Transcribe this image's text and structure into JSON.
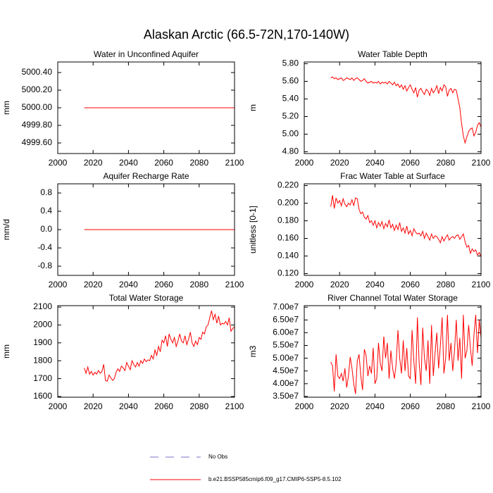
{
  "title": "Alaskan Arctic (66.5-72N,170-140W)",
  "legend": [
    {
      "name": "No Obs",
      "color": "#7d6fc9",
      "dashed": true
    },
    {
      "name": "b.e21.BSSP585cmip6.f09_g17.CMIP6-SSP5-8.5.102",
      "color": "#ff0000",
      "dashed": false
    }
  ],
  "chart_data": [
    {
      "type": "line",
      "title": "Water in Unconfined Aquifer",
      "ylabel": "mm",
      "color": "#ff0000",
      "xlim": [
        2000,
        2100
      ],
      "xticks": [
        2000,
        2020,
        2040,
        2060,
        2080,
        2100
      ],
      "ylim": [
        4999.48,
        5000.52
      ],
      "yticks": [
        {
          "value": 4999.6,
          "label": "4999.60"
        },
        {
          "value": 4999.8,
          "label": "4999.80"
        },
        {
          "value": 5000,
          "label": "5000.00"
        },
        {
          "value": 5000.2,
          "label": "5000.20"
        },
        {
          "value": 5000.4,
          "label": "5000.40"
        }
      ],
      "x": [
        2015,
        2016,
        2017,
        2018,
        2019,
        2020,
        2021,
        2022,
        2023,
        2024,
        2025,
        2026,
        2027,
        2028,
        2029,
        2030,
        2031,
        2032,
        2033,
        2034,
        2035,
        2036,
        2037,
        2038,
        2039,
        2040,
        2041,
        2042,
        2043,
        2044,
        2045,
        2046,
        2047,
        2048,
        2049,
        2050,
        2051,
        2052,
        2053,
        2054,
        2055,
        2056,
        2057,
        2058,
        2059,
        2060,
        2061,
        2062,
        2063,
        2064,
        2065,
        2066,
        2067,
        2068,
        2069,
        2070,
        2071,
        2072,
        2073,
        2074,
        2075,
        2076,
        2077,
        2078,
        2079,
        2080,
        2081,
        2082,
        2083,
        2084,
        2085,
        2086,
        2087,
        2088,
        2089,
        2090,
        2091,
        2092,
        2093,
        2094,
        2095,
        2096,
        2097,
        2098,
        2099,
        2100
      ],
      "values": [
        5000,
        5000,
        5000,
        5000,
        5000,
        5000,
        5000,
        5000,
        5000,
        5000,
        5000,
        5000,
        5000,
        5000,
        5000,
        5000,
        5000,
        5000,
        5000,
        5000,
        5000,
        5000,
        5000,
        5000,
        5000,
        5000,
        5000,
        5000,
        5000,
        5000,
        5000,
        5000,
        5000,
        5000,
        5000,
        5000,
        5000,
        5000,
        5000,
        5000,
        5000,
        5000,
        5000,
        5000,
        5000,
        5000,
        5000,
        5000,
        5000,
        5000,
        5000,
        5000,
        5000,
        5000,
        5000,
        5000,
        5000,
        5000,
        5000,
        5000,
        5000,
        5000,
        5000,
        5000,
        5000,
        5000,
        5000,
        5000,
        5000,
        5000,
        5000,
        5000,
        5000,
        5000,
        5000,
        5000,
        5000,
        5000,
        5000,
        5000,
        5000,
        5000,
        5000,
        5000,
        5000,
        5000
      ]
    },
    {
      "type": "line",
      "title": "Water Table Depth",
      "ylabel": "m",
      "color": "#ff0000",
      "xlim": [
        2000,
        2100
      ],
      "xticks": [
        2000,
        2020,
        2040,
        2060,
        2080,
        2100
      ],
      "ylim": [
        4.78,
        5.82
      ],
      "yticks": [
        {
          "value": 4.8,
          "label": "4.80"
        },
        {
          "value": 5,
          "label": "5.00"
        },
        {
          "value": 5.2,
          "label": "5.20"
        },
        {
          "value": 5.4,
          "label": "5.40"
        },
        {
          "value": 5.6,
          "label": "5.60"
        },
        {
          "value": 5.8,
          "label": "5.80"
        }
      ],
      "x": [
        2015,
        2016,
        2017,
        2018,
        2019,
        2020,
        2021,
        2022,
        2023,
        2024,
        2025,
        2026,
        2027,
        2028,
        2029,
        2030,
        2031,
        2032,
        2033,
        2034,
        2035,
        2036,
        2037,
        2038,
        2039,
        2040,
        2041,
        2042,
        2043,
        2044,
        2045,
        2046,
        2047,
        2048,
        2049,
        2050,
        2051,
        2052,
        2053,
        2054,
        2055,
        2056,
        2057,
        2058,
        2059,
        2060,
        2061,
        2062,
        2063,
        2064,
        2065,
        2066,
        2067,
        2068,
        2069,
        2070,
        2071,
        2072,
        2073,
        2074,
        2075,
        2076,
        2077,
        2078,
        2079,
        2080,
        2081,
        2082,
        2083,
        2084,
        2085,
        2086,
        2087,
        2088,
        2089,
        2090,
        2091,
        2092,
        2093,
        2094,
        2095,
        2096,
        2097,
        2098,
        2099,
        2100
      ],
      "values": [
        5.64,
        5.65,
        5.63,
        5.64,
        5.62,
        5.63,
        5.64,
        5.61,
        5.62,
        5.64,
        5.63,
        5.62,
        5.64,
        5.61,
        5.63,
        5.64,
        5.62,
        5.6,
        5.61,
        5.63,
        5.6,
        5.58,
        5.59,
        5.6,
        5.58,
        5.59,
        5.58,
        5.6,
        5.57,
        5.59,
        5.58,
        5.59,
        5.57,
        5.6,
        5.58,
        5.56,
        5.59,
        5.55,
        5.57,
        5.53,
        5.56,
        5.51,
        5.55,
        5.49,
        5.53,
        5.56,
        5.51,
        5.47,
        5.53,
        5.42,
        5.5,
        5.52,
        5.48,
        5.45,
        5.51,
        5.49,
        5.44,
        5.52,
        5.47,
        5.5,
        5.55,
        5.46,
        5.53,
        5.49,
        5.56,
        5.54,
        5.43,
        5.5,
        5.52,
        5.47,
        5.51,
        5.5,
        5.4,
        5.3,
        5.12,
        4.98,
        4.9,
        4.97,
        5.03,
        5.06,
        5.07,
        4.98,
        5.02,
        5.1,
        5.13,
        5.08
      ]
    },
    {
      "type": "line",
      "title": "Aquifer Recharge Rate",
      "ylabel": "mm/d",
      "color": "#ff0000",
      "xlim": [
        2000,
        2100
      ],
      "xticks": [
        2000,
        2020,
        2040,
        2060,
        2080,
        2100
      ],
      "ylim": [
        -1,
        1
      ],
      "yticks": [
        -0.8,
        -0.4,
        {
          "value": 0,
          "label": "0.0"
        },
        0.4,
        0.8
      ],
      "x": [
        2015,
        2016,
        2017,
        2018,
        2019,
        2020,
        2021,
        2022,
        2023,
        2024,
        2025,
        2026,
        2027,
        2028,
        2029,
        2030,
        2031,
        2032,
        2033,
        2034,
        2035,
        2036,
        2037,
        2038,
        2039,
        2040,
        2041,
        2042,
        2043,
        2044,
        2045,
        2046,
        2047,
        2048,
        2049,
        2050,
        2051,
        2052,
        2053,
        2054,
        2055,
        2056,
        2057,
        2058,
        2059,
        2060,
        2061,
        2062,
        2063,
        2064,
        2065,
        2066,
        2067,
        2068,
        2069,
        2070,
        2071,
        2072,
        2073,
        2074,
        2075,
        2076,
        2077,
        2078,
        2079,
        2080,
        2081,
        2082,
        2083,
        2084,
        2085,
        2086,
        2087,
        2088,
        2089,
        2090,
        2091,
        2092,
        2093,
        2094,
        2095,
        2096,
        2097,
        2098,
        2099,
        2100
      ],
      "values": [
        0,
        0,
        0,
        0,
        0,
        0,
        0,
        0,
        0,
        0,
        0,
        0,
        0,
        0,
        0,
        0,
        0,
        0,
        0,
        0,
        0,
        0,
        0,
        0,
        0,
        0,
        0,
        0,
        0,
        0,
        0,
        0,
        0,
        0,
        0,
        0,
        0,
        0,
        0,
        0,
        0,
        0,
        0,
        0,
        0,
        0,
        0,
        0,
        0,
        0,
        0,
        0,
        0,
        0,
        0,
        0,
        0,
        0,
        0,
        0,
        0,
        0,
        0,
        0,
        0,
        0,
        0,
        0,
        0,
        0,
        0,
        0,
        0,
        0,
        0,
        0,
        0,
        0,
        0,
        0,
        0,
        0,
        0,
        0,
        0,
        0
      ]
    },
    {
      "type": "line",
      "title": "Frac Water Table at Surface",
      "ylabel": "unitless [0-1]",
      "color": "#ff0000",
      "xlim": [
        2000,
        2100
      ],
      "xticks": [
        2000,
        2020,
        2040,
        2060,
        2080,
        2100
      ],
      "ylim": [
        0.118,
        0.222
      ],
      "yticks": [
        {
          "value": 0.12,
          "label": "0.120"
        },
        {
          "value": 0.14,
          "label": "0.140"
        },
        {
          "value": 0.16,
          "label": "0.160"
        },
        {
          "value": 0.18,
          "label": "0.180"
        },
        {
          "value": 0.2,
          "label": "0.200"
        },
        {
          "value": 0.22,
          "label": "0.220"
        }
      ],
      "x": [
        2015,
        2016,
        2017,
        2018,
        2019,
        2020,
        2021,
        2022,
        2023,
        2024,
        2025,
        2026,
        2027,
        2028,
        2029,
        2030,
        2031,
        2032,
        2033,
        2034,
        2035,
        2036,
        2037,
        2038,
        2039,
        2040,
        2041,
        2042,
        2043,
        2044,
        2045,
        2046,
        2047,
        2048,
        2049,
        2050,
        2051,
        2052,
        2053,
        2054,
        2055,
        2056,
        2057,
        2058,
        2059,
        2060,
        2061,
        2062,
        2063,
        2064,
        2065,
        2066,
        2067,
        2068,
        2069,
        2070,
        2071,
        2072,
        2073,
        2074,
        2075,
        2076,
        2077,
        2078,
        2079,
        2080,
        2081,
        2082,
        2083,
        2084,
        2085,
        2086,
        2087,
        2088,
        2089,
        2090,
        2091,
        2092,
        2093,
        2094,
        2095,
        2096,
        2097,
        2098,
        2099,
        2100
      ],
      "values": [
        0.196,
        0.209,
        0.194,
        0.206,
        0.2,
        0.203,
        0.197,
        0.205,
        0.199,
        0.196,
        0.2,
        0.198,
        0.204,
        0.197,
        0.206,
        0.205,
        0.193,
        0.188,
        0.19,
        0.184,
        0.182,
        0.186,
        0.178,
        0.18,
        0.175,
        0.18,
        0.172,
        0.178,
        0.174,
        0.179,
        0.171,
        0.177,
        0.173,
        0.181,
        0.172,
        0.176,
        0.169,
        0.175,
        0.17,
        0.178,
        0.168,
        0.172,
        0.166,
        0.174,
        0.165,
        0.169,
        0.163,
        0.171,
        0.167,
        0.165,
        0.166,
        0.163,
        0.168,
        0.16,
        0.166,
        0.162,
        0.158,
        0.165,
        0.16,
        0.163,
        0.162,
        0.159,
        0.155,
        0.162,
        0.157,
        0.161,
        0.164,
        0.158,
        0.161,
        0.162,
        0.16,
        0.163,
        0.164,
        0.159,
        0.162,
        0.165,
        0.156,
        0.15,
        0.152,
        0.143,
        0.148,
        0.145,
        0.147,
        0.141,
        0.144,
        0.139
      ]
    },
    {
      "type": "line",
      "title": "Total Water Storage",
      "ylabel": "mm",
      "color": "#ff0000",
      "xlim": [
        2000,
        2100
      ],
      "xticks": [
        2000,
        2020,
        2040,
        2060,
        2080,
        2100
      ],
      "ylim": [
        1596,
        2108
      ],
      "yticks": [
        1600,
        1700,
        1800,
        1900,
        2000,
        2100
      ],
      "x": [
        2015,
        2016,
        2017,
        2018,
        2019,
        2020,
        2021,
        2022,
        2023,
        2024,
        2025,
        2026,
        2027,
        2028,
        2029,
        2030,
        2031,
        2032,
        2033,
        2034,
        2035,
        2036,
        2037,
        2038,
        2039,
        2040,
        2041,
        2042,
        2043,
        2044,
        2045,
        2046,
        2047,
        2048,
        2049,
        2050,
        2051,
        2052,
        2053,
        2054,
        2055,
        2056,
        2057,
        2058,
        2059,
        2060,
        2061,
        2062,
        2063,
        2064,
        2065,
        2066,
        2067,
        2068,
        2069,
        2070,
        2071,
        2072,
        2073,
        2074,
        2075,
        2076,
        2077,
        2078,
        2079,
        2080,
        2081,
        2082,
        2083,
        2084,
        2085,
        2086,
        2087,
        2088,
        2089,
        2090,
        2091,
        2092,
        2093,
        2094,
        2095,
        2096,
        2097,
        2098,
        2099,
        2100
      ],
      "values": [
        1760,
        1730,
        1765,
        1725,
        1740,
        1720,
        1735,
        1725,
        1745,
        1730,
        1740,
        1780,
        1690,
        1685,
        1720,
        1705,
        1690,
        1700,
        1735,
        1755,
        1740,
        1770,
        1760,
        1745,
        1790,
        1770,
        1750,
        1800,
        1780,
        1765,
        1790,
        1770,
        1800,
        1785,
        1810,
        1795,
        1805,
        1800,
        1830,
        1810,
        1860,
        1830,
        1880,
        1850,
        1915,
        1900,
        1940,
        1880,
        1950,
        1920,
        1900,
        1930,
        1880,
        1910,
        1950,
        1910,
        1900,
        1940,
        1890,
        1920,
        1960,
        1900,
        1880,
        1910,
        1890,
        1930,
        1920,
        1960,
        1950,
        1990,
        2000,
        2040,
        2080,
        2030,
        2060,
        2010,
        2050,
        2000,
        2010,
        2005,
        2020,
        2000,
        2040,
        1965,
        1980,
        1990
      ]
    },
    {
      "type": "line",
      "title": "River Channel Total Water Storage",
      "ylabel": "m3",
      "color": "#ff0000",
      "xlim": [
        2000,
        2100
      ],
      "xticks": [
        2000,
        2020,
        2040,
        2060,
        2080,
        2100
      ],
      "ylim": [
        34700000.0,
        70600000.0
      ],
      "yticks": [
        {
          "value": 35000000.0,
          "label": "3.50e7"
        },
        {
          "value": 40000000.0,
          "label": "4.00e7"
        },
        {
          "value": 45000000.0,
          "label": "4.50e7"
        },
        {
          "value": 50000000.0,
          "label": "5.00e7"
        },
        {
          "value": 55000000.0,
          "label": "5.50e7"
        },
        {
          "value": 60000000.0,
          "label": "6.00e7"
        },
        {
          "value": 65000000.0,
          "label": "6.50e7"
        },
        {
          "value": 70000000.0,
          "label": "7.00e7"
        }
      ],
      "x": [
        2015,
        2016,
        2017,
        2018,
        2019,
        2020,
        2021,
        2022,
        2023,
        2024,
        2025,
        2026,
        2027,
        2028,
        2029,
        2030,
        2031,
        2032,
        2033,
        2034,
        2035,
        2036,
        2037,
        2038,
        2039,
        2040,
        2041,
        2042,
        2043,
        2044,
        2045,
        2046,
        2047,
        2048,
        2049,
        2050,
        2051,
        2052,
        2053,
        2054,
        2055,
        2056,
        2057,
        2058,
        2059,
        2060,
        2061,
        2062,
        2063,
        2064,
        2065,
        2066,
        2067,
        2068,
        2069,
        2070,
        2071,
        2072,
        2073,
        2074,
        2075,
        2076,
        2077,
        2078,
        2079,
        2080,
        2081,
        2082,
        2083,
        2084,
        2085,
        2086,
        2087,
        2088,
        2089,
        2090,
        2091,
        2092,
        2093,
        2094,
        2095,
        2096,
        2097,
        2098,
        2099,
        2100
      ],
      "values": [
        48500000.0,
        47000000.0,
        37000000.0,
        51500000.0,
        43000000.0,
        42000000.0,
        44000000.0,
        41000000.0,
        46000000.0,
        38500000.0,
        43000000.0,
        50500000.0,
        46000000.0,
        40000000.0,
        36000000.0,
        49000000.0,
        51500000.0,
        43000000.0,
        37500000.0,
        53500000.0,
        51000000.0,
        43000000.0,
        47000000.0,
        44000000.0,
        54000000.0,
        40000000.0,
        42000000.0,
        56000000.0,
        48000000.0,
        45000000.0,
        58500000.0,
        50000000.0,
        56000000.0,
        42000000.0,
        53000000.0,
        46000000.0,
        42000000.0,
        48000000.0,
        61000000.0,
        50000000.0,
        44000000.0,
        57000000.0,
        45000000.0,
        54000000.0,
        43000000.0,
        42000000.0,
        61000000.0,
        49000000.0,
        40000000.0,
        66000000.0,
        48000000.0,
        39500000.0,
        62000000.0,
        50000000.0,
        45000000.0,
        57000000.0,
        40000000.0,
        63000000.0,
        43000000.0,
        52000000.0,
        60000000.0,
        46000000.0,
        55000000.0,
        66000000.0,
        44000000.0,
        50000000.0,
        67000000.0,
        49000000.0,
        56000000.0,
        45000000.0,
        53000000.0,
        65000000.0,
        49000000.0,
        58000000.0,
        42000000.0,
        67000000.0,
        50000000.0,
        53000000.0,
        63000000.0,
        54000000.0,
        47000000.0,
        59000000.0,
        67000000.0,
        52000000.0,
        65000000.0,
        58000000.0
      ]
    }
  ]
}
